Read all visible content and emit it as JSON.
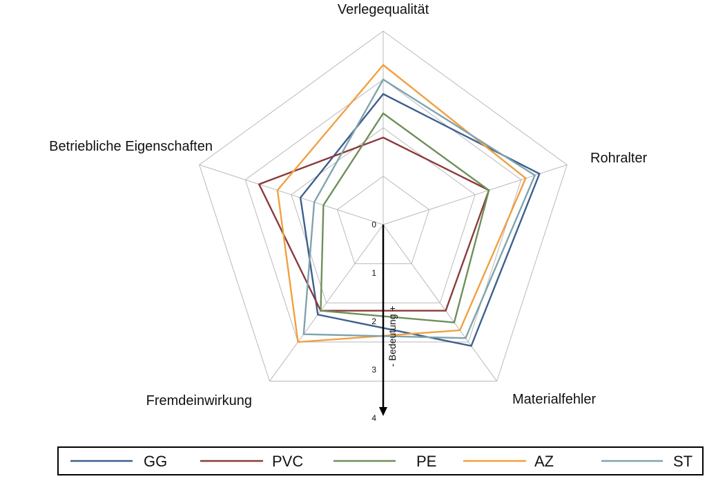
{
  "chart_data": {
    "type": "radar",
    "axes": [
      "Verlegequalität",
      "Rohralter",
      "Materialfehler",
      "Fremdeinwirkung",
      "Betriebliche Eigenschaften"
    ],
    "scale": {
      "min": 0,
      "max": 4,
      "ticks": [
        "0",
        "1",
        "2",
        "3",
        "4"
      ],
      "label_minus": "-",
      "label_text": "Bedeutung",
      "label_plus": "+"
    },
    "series": [
      {
        "name": "GG",
        "color": "#3c5f8e",
        "values": [
          2.7,
          3.4,
          3.1,
          2.3,
          1.8
        ]
      },
      {
        "name": "PVC",
        "color": "#8b3a3a",
        "values": [
          1.8,
          2.3,
          2.2,
          2.2,
          2.7
        ]
      },
      {
        "name": "PE",
        "color": "#6f8f5a",
        "values": [
          2.3,
          2.3,
          2.5,
          2.2,
          1.3
        ]
      },
      {
        "name": "AZ",
        "color": "#f0a040",
        "values": [
          3.3,
          3.1,
          2.7,
          3.0,
          2.3
        ]
      },
      {
        "name": "ST",
        "color": "#7fa3ad",
        "values": [
          3.0,
          3.3,
          2.9,
          2.8,
          1.5
        ]
      }
    ],
    "legend": {
      "position": "bottom"
    },
    "grid": true
  }
}
